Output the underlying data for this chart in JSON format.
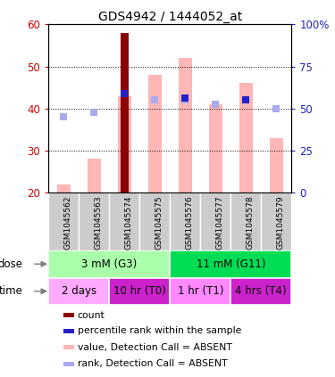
{
  "title": "GDS4942 / 1444052_at",
  "samples": [
    "GSM1045562",
    "GSM1045563",
    "GSM1045574",
    "GSM1045575",
    "GSM1045576",
    "GSM1045577",
    "GSM1045578",
    "GSM1045579"
  ],
  "count_values": [
    0,
    0,
    58,
    0,
    0,
    0,
    0,
    0
  ],
  "count_color": "#8B0000",
  "value_absent": [
    22,
    28,
    43,
    48,
    52,
    41,
    46,
    33
  ],
  "value_absent_color": "#FFB6B6",
  "rank_absent_left": [
    38,
    39,
    0,
    42,
    42,
    41,
    42,
    40
  ],
  "rank_absent_color": "#AAAAEE",
  "percentile_rank_left": [
    0,
    0,
    43.5,
    0,
    42.5,
    0,
    42,
    0
  ],
  "percentile_rank_color": "#2222CC",
  "ylim_left": [
    20,
    60
  ],
  "yticks_left": [
    20,
    30,
    40,
    50,
    60
  ],
  "left_tick_labels": [
    "20",
    "30",
    "40",
    "50",
    "60"
  ],
  "right_tick_labels": [
    "0",
    "25",
    "50",
    "75",
    "100%"
  ],
  "dose_groups": [
    {
      "label": "3 mM (G3)",
      "start": 0,
      "end": 4,
      "color": "#AAFFAA"
    },
    {
      "label": "11 mM (G11)",
      "start": 4,
      "end": 8,
      "color": "#00DD55"
    }
  ],
  "time_groups": [
    {
      "label": "2 days",
      "start": 0,
      "end": 2,
      "color": "#FFAAFF"
    },
    {
      "label": "10 hr (T0)",
      "start": 2,
      "end": 4,
      "color": "#CC22CC"
    },
    {
      "label": "1 hr (T1)",
      "start": 4,
      "end": 6,
      "color": "#FF88FF"
    },
    {
      "label": "4 hrs (T4)",
      "start": 6,
      "end": 8,
      "color": "#CC22CC"
    }
  ],
  "legend_items": [
    {
      "color": "#8B0000",
      "label": "count"
    },
    {
      "color": "#2222CC",
      "label": "percentile rank within the sample"
    },
    {
      "color": "#FFB6B6",
      "label": "value, Detection Call = ABSENT"
    },
    {
      "color": "#AAAAEE",
      "label": "rank, Detection Call = ABSENT"
    }
  ],
  "bar_width": 0.45,
  "left_label_color": "#CC0000",
  "right_label_color": "#2222BB",
  "sample_box_color": "#CCCCCC",
  "plot_bg_color": "#FFFFFF"
}
